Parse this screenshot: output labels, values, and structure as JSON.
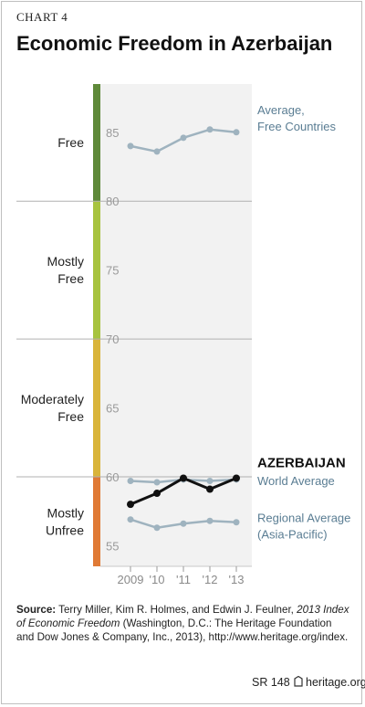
{
  "header": {
    "kicker": "CHART 4",
    "title": "Economic Freedom in Azerbaijan"
  },
  "chart_data": {
    "type": "line",
    "title": "Economic Freedom in Azerbaijan",
    "x": [
      "2009",
      "'10",
      "'11",
      "'12",
      "'13"
    ],
    "yticks": [
      "85",
      "80",
      "75",
      "70",
      "65",
      "60",
      "55"
    ],
    "ylim": [
      53.5,
      88.5
    ],
    "grid": false,
    "bands": [
      {
        "label_lines": [
          "Free"
        ],
        "from": 80,
        "to": 100,
        "color": "#5f8a3a"
      },
      {
        "label_lines": [
          "Mostly",
          "Free"
        ],
        "from": 70,
        "to": 80,
        "color": "#a7c33f"
      },
      {
        "label_lines": [
          "Moderately",
          "Free"
        ],
        "from": 60,
        "to": 70,
        "color": "#d9b43a"
      },
      {
        "label_lines": [
          "Mostly",
          "Unfree"
        ],
        "from": 50,
        "to": 60,
        "color": "#e07a35"
      }
    ],
    "series": [
      {
        "name_lines": [
          "Average,",
          "Free Countries"
        ],
        "color": "#9fb3bf",
        "bold": false,
        "values": [
          84.0,
          83.6,
          84.6,
          85.2,
          85.0
        ]
      },
      {
        "name_lines": [
          "World Average"
        ],
        "color": "#9fb3bf",
        "bold": false,
        "values": [
          59.7,
          59.6,
          59.8,
          59.7,
          59.8
        ]
      },
      {
        "name_lines": [
          "AZERBAIJAN"
        ],
        "color": "#111111",
        "bold": true,
        "values": [
          58.0,
          58.8,
          59.9,
          59.1,
          59.9
        ]
      },
      {
        "name_lines": [
          "Regional Average",
          "(Asia-Pacific)"
        ],
        "color": "#9fb3bf",
        "bold": false,
        "values": [
          56.9,
          56.3,
          56.6,
          56.8,
          56.7
        ]
      }
    ]
  },
  "source": {
    "label": "Source:",
    "authors": " Terry Miller, Kim R. Holmes, and Edwin J. Feulner, ",
    "work": "2013 Index of Economic Freedom",
    "rest": " (Washington, D.C.: The Heritage Foundation and Dow Jones & Company, Inc., 2013), http://www.heritage.org/index."
  },
  "footer": {
    "code": "SR 148",
    "site": "heritage.org"
  }
}
